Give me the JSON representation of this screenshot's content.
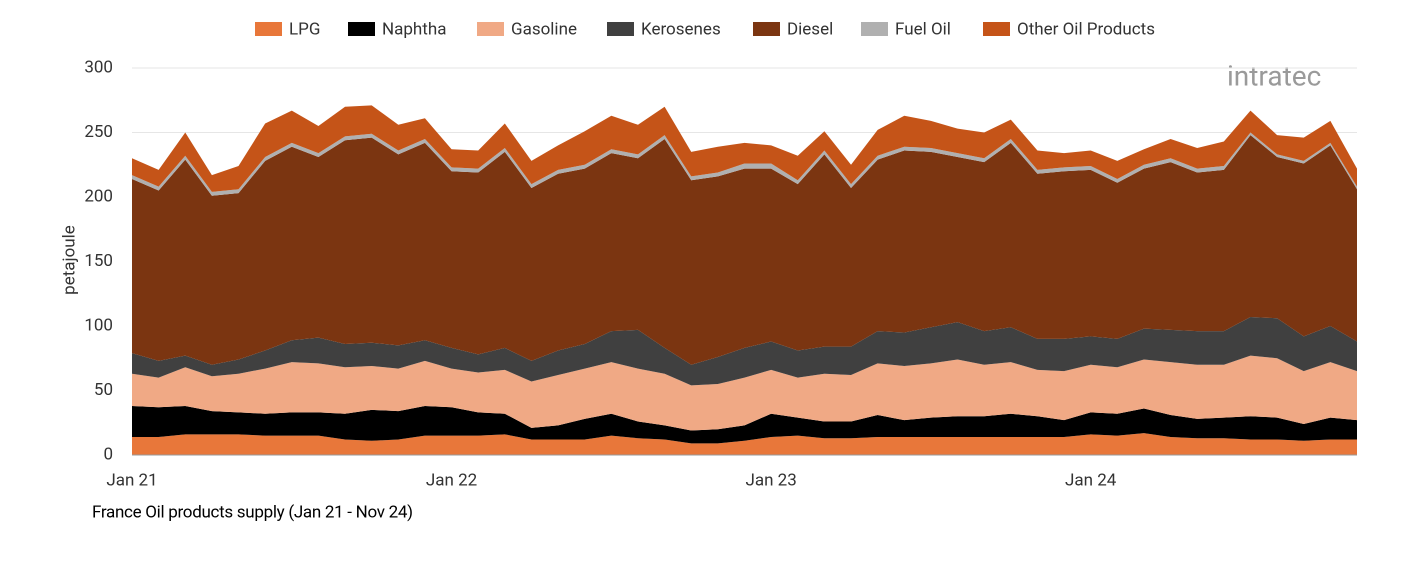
{
  "chart_data": {
    "type": "stacked-area",
    "title": "France Oil products supply (Jan 21 - Nov 24)",
    "y_label": "petajoule",
    "logo": "intratec",
    "categories": [
      "Jan 21",
      null,
      null,
      null,
      null,
      null,
      null,
      null,
      null,
      null,
      null,
      null,
      "Jan 22",
      null,
      null,
      null,
      null,
      null,
      null,
      null,
      null,
      null,
      null,
      null,
      "Jan 23",
      null,
      null,
      null,
      null,
      null,
      null,
      null,
      null,
      null,
      null,
      null,
      "Jan 24",
      null,
      null,
      null,
      null,
      null,
      null,
      null,
      null,
      null,
      null
    ],
    "ylim": [
      0,
      300
    ],
    "yticks": [
      0,
      50,
      100,
      150,
      200,
      250,
      300
    ],
    "grid": true,
    "legend": "top",
    "series": [
      {
        "name": "LPG",
        "color": "#e8773a",
        "values": [
          14,
          14,
          16,
          16,
          16,
          15,
          15,
          15,
          12,
          11,
          12,
          15,
          15,
          15,
          16,
          12,
          12,
          12,
          15,
          13,
          12,
          9,
          9,
          11,
          14,
          15,
          13,
          13,
          14,
          14,
          14,
          14,
          14,
          14,
          14,
          14,
          16,
          15,
          17,
          14,
          13,
          13,
          12,
          12,
          11,
          12,
          12
        ]
      },
      {
        "name": "Naphtha",
        "color": "#000000",
        "values": [
          24,
          23,
          22,
          18,
          17,
          17,
          18,
          18,
          20,
          24,
          22,
          23,
          22,
          18,
          16,
          9,
          11,
          16,
          17,
          13,
          11,
          10,
          11,
          12,
          18,
          14,
          13,
          13,
          17,
          13,
          15,
          16,
          16,
          18,
          16,
          13,
          17,
          17,
          19,
          17,
          15,
          16,
          18,
          17,
          13,
          17,
          15
        ]
      },
      {
        "name": "Gasoline",
        "color": "#f0a985",
        "values": [
          25,
          23,
          30,
          27,
          30,
          35,
          39,
          38,
          36,
          34,
          33,
          35,
          30,
          31,
          34,
          36,
          39,
          39,
          40,
          41,
          40,
          35,
          35,
          37,
          34,
          31,
          37,
          36,
          40,
          42,
          42,
          44,
          40,
          40,
          36,
          38,
          37,
          36,
          38,
          41,
          42,
          41,
          47,
          46,
          41,
          43,
          38
        ]
      },
      {
        "name": "Kerosenes",
        "color": "#404040",
        "values": [
          16,
          13,
          9,
          9,
          11,
          14,
          17,
          20,
          18,
          18,
          18,
          16,
          16,
          14,
          17,
          16,
          19,
          19,
          24,
          30,
          20,
          16,
          21,
          23,
          22,
          21,
          21,
          22,
          25,
          26,
          28,
          29,
          26,
          27,
          24,
          25,
          22,
          22,
          24,
          25,
          26,
          26,
          30,
          31,
          27,
          28,
          23
        ]
      },
      {
        "name": "Diesel",
        "color": "#7b3511",
        "values": [
          135,
          132,
          152,
          131,
          129,
          147,
          150,
          140,
          158,
          159,
          148,
          153,
          137,
          141,
          152,
          134,
          137,
          136,
          138,
          133,
          162,
          143,
          140,
          139,
          134,
          129,
          149,
          123,
          133,
          141,
          136,
          128,
          131,
          143,
          128,
          130,
          129,
          121,
          124,
          130,
          123,
          125,
          141,
          125,
          134,
          140,
          118
        ]
      },
      {
        "name": "Fuel Oil",
        "color": "#b0b0b0",
        "values": [
          3,
          3,
          3,
          3,
          3,
          3,
          3,
          3,
          3,
          3,
          3,
          3,
          3,
          3,
          3,
          3,
          3,
          3,
          3,
          3,
          3,
          3,
          3,
          4,
          4,
          3,
          3,
          3,
          3,
          3,
          3,
          3,
          3,
          3,
          3,
          3,
          3,
          3,
          3,
          3,
          3,
          3,
          2,
          2,
          2,
          2,
          2
        ]
      },
      {
        "name": "Other Oil Products",
        "color": "#c55418",
        "values": [
          13,
          13,
          18,
          13,
          18,
          26,
          25,
          21,
          23,
          22,
          20,
          16,
          14,
          14,
          19,
          18,
          19,
          26,
          26,
          23,
          22,
          19,
          20,
          16,
          14,
          19,
          15,
          15,
          20,
          24,
          21,
          19,
          20,
          15,
          15,
          11,
          12,
          14,
          12,
          15,
          16,
          19,
          17,
          15,
          18,
          17,
          14
        ]
      }
    ]
  }
}
